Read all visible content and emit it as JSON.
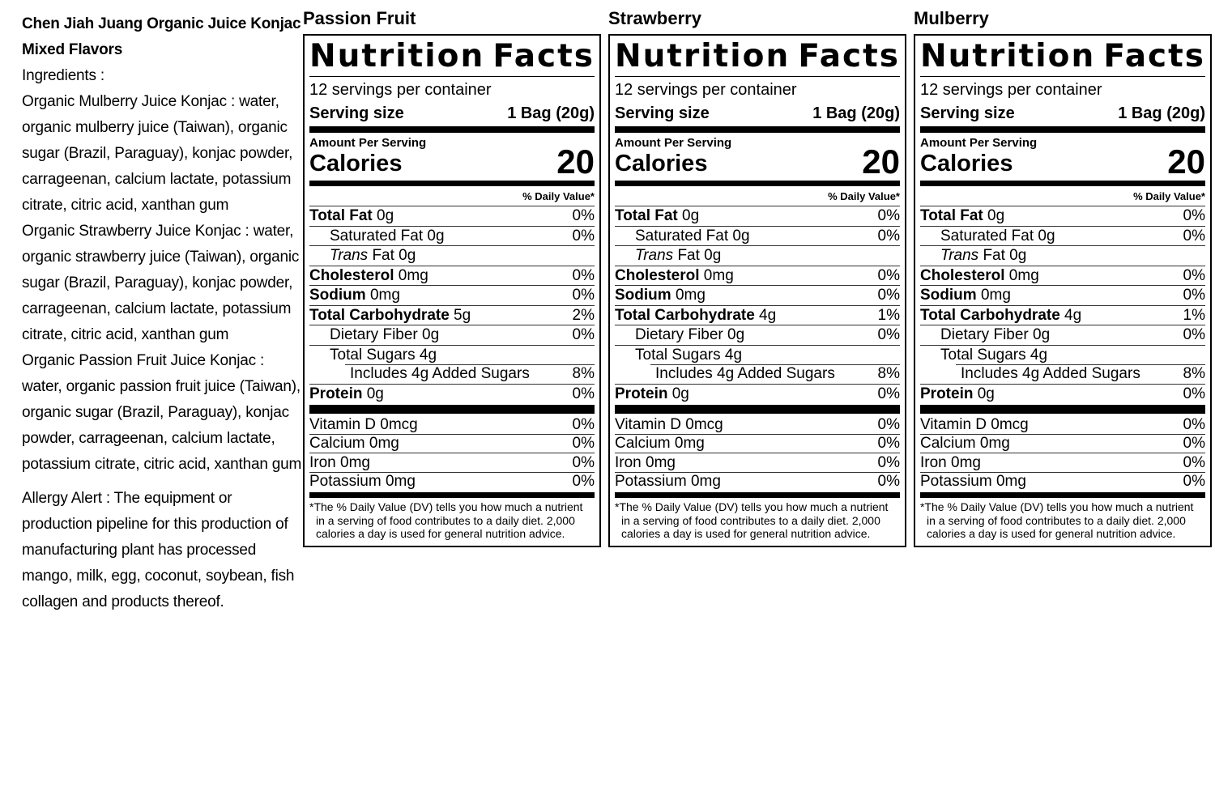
{
  "left_panel": {
    "title": "Chen Jiah Juang Organic Juice Konjac Mixed Flavors",
    "ingredients_heading": "Ingredients :",
    "paragraphs": [
      "Organic Mulberry Juice Konjac : water, organic mulberry juice (Taiwan), organic sugar (Brazil, Paraguay), konjac powder, carrageenan, calcium lactate, potassium citrate, citric acid, xanthan gum",
      "Organic Strawberry Juice Konjac : water, organic strawberry juice (Taiwan), organic sugar (Brazil, Paraguay), konjac powder, carrageenan, calcium lactate, potassium citrate, citric acid, xanthan gum",
      "Organic Passion Fruit Juice Konjac : water, organic passion fruit juice (Taiwan), organic sugar (Brazil, Paraguay), konjac powder, carrageenan, calcium lactate, potassium citrate, citric acid, xanthan gum"
    ],
    "allergy": "Allergy Alert : The equipment or production pipeline for this production of manufacturing plant has processed mango, milk, egg, coconut, soybean, fish collagen and products thereof."
  },
  "colors": {
    "text": "#000000",
    "background": "#ffffff",
    "rule": "#333333"
  },
  "labels": [
    {
      "flavor": "Passion Fruit",
      "title": "Nutrition Facts",
      "servings": "12 servings per container",
      "serving_size_label": "Serving size",
      "serving_size_value": "1 Bag (20g)",
      "amount_per_serving": "Amount Per Serving",
      "calories_label": "Calories",
      "calories_value": "20",
      "daily_value_header": "% Daily Value*",
      "rows": [
        {
          "segments": [
            {
              "text": "Total Fat",
              "bold": true
            },
            {
              "text": " 0g"
            }
          ],
          "pct": "0%",
          "pct_bold": true,
          "indent": 0,
          "sep": "line"
        },
        {
          "segments": [
            {
              "text": "Saturated Fat 0g"
            }
          ],
          "pct": "0%",
          "pct_bold": true,
          "indent": 1,
          "sep": "line"
        },
        {
          "segments": [
            {
              "text": "Trans",
              "italic": true
            },
            {
              "text": " Fat 0g"
            }
          ],
          "pct": "",
          "pct_bold": false,
          "indent": 1,
          "sep": "line"
        },
        {
          "segments": [
            {
              "text": "Cholesterol",
              "bold": true
            },
            {
              "text": " 0mg"
            }
          ],
          "pct": "0%",
          "pct_bold": true,
          "indent": 0,
          "sep": "line"
        },
        {
          "segments": [
            {
              "text": "Sodium",
              "bold": true
            },
            {
              "text": " 0mg"
            }
          ],
          "pct": "0%",
          "pct_bold": true,
          "indent": 0,
          "sep": "line"
        },
        {
          "segments": [
            {
              "text": "Total Carbohydrate",
              "bold": true
            },
            {
              "text": " 5g"
            }
          ],
          "pct": "2%",
          "pct_bold": true,
          "indent": 0,
          "sep": "line"
        },
        {
          "segments": [
            {
              "text": "Dietary Fiber 0g"
            }
          ],
          "pct": "0%",
          "pct_bold": true,
          "indent": 1,
          "sep": "line"
        },
        {
          "segments": [
            {
              "text": "Total Sugars 4g"
            }
          ],
          "pct": "",
          "pct_bold": false,
          "indent": 1,
          "sep": "line"
        },
        {
          "segments": [
            {
              "text": "Includes 4g Added Sugars"
            }
          ],
          "pct": "8%",
          "pct_bold": true,
          "indent": 2,
          "sep": "indent"
        },
        {
          "segments": [
            {
              "text": "Protein",
              "bold": true
            },
            {
              "text": " 0g"
            }
          ],
          "pct": "0%",
          "pct_bold": true,
          "indent": 0,
          "sep": "line"
        }
      ],
      "vitamin_rows": [
        {
          "segments": [
            {
              "text": "Vitamin D 0mcg"
            }
          ],
          "pct": "0%",
          "pct_bold": false,
          "indent": 0,
          "sep": "none"
        },
        {
          "segments": [
            {
              "text": "Calcium 0mg"
            }
          ],
          "pct": "0%",
          "pct_bold": false,
          "indent": 0,
          "sep": "line"
        },
        {
          "segments": [
            {
              "text": "Iron 0mg"
            }
          ],
          "pct": "0%",
          "pct_bold": false,
          "indent": 0,
          "sep": "line"
        },
        {
          "segments": [
            {
              "text": "Potassium 0mg"
            }
          ],
          "pct": "0%",
          "pct_bold": false,
          "indent": 0,
          "sep": "line"
        }
      ],
      "footnote": "*The % Daily Value (DV) tells you how much a nutrient in a serving of food contributes to a daily diet. 2,000 calories a day is used for general nutrition advice."
    },
    {
      "flavor": "Strawberry",
      "title": "Nutrition Facts",
      "servings": "12 servings per container",
      "serving_size_label": "Serving size",
      "serving_size_value": "1 Bag (20g)",
      "amount_per_serving": "Amount Per Serving",
      "calories_label": "Calories",
      "calories_value": "20",
      "daily_value_header": "% Daily Value*",
      "rows": [
        {
          "segments": [
            {
              "text": "Total Fat",
              "bold": true
            },
            {
              "text": " 0g"
            }
          ],
          "pct": "0%",
          "pct_bold": true,
          "indent": 0,
          "sep": "line"
        },
        {
          "segments": [
            {
              "text": "Saturated Fat 0g"
            }
          ],
          "pct": "0%",
          "pct_bold": true,
          "indent": 1,
          "sep": "line"
        },
        {
          "segments": [
            {
              "text": "Trans",
              "italic": true
            },
            {
              "text": " Fat 0g"
            }
          ],
          "pct": "",
          "pct_bold": false,
          "indent": 1,
          "sep": "line"
        },
        {
          "segments": [
            {
              "text": "Cholesterol",
              "bold": true
            },
            {
              "text": " 0mg"
            }
          ],
          "pct": "0%",
          "pct_bold": true,
          "indent": 0,
          "sep": "line"
        },
        {
          "segments": [
            {
              "text": "Sodium",
              "bold": true
            },
            {
              "text": " 0mg"
            }
          ],
          "pct": "0%",
          "pct_bold": true,
          "indent": 0,
          "sep": "line"
        },
        {
          "segments": [
            {
              "text": "Total Carbohydrate",
              "bold": true
            },
            {
              "text": " 4g"
            }
          ],
          "pct": "1%",
          "pct_bold": true,
          "indent": 0,
          "sep": "line"
        },
        {
          "segments": [
            {
              "text": "Dietary Fiber 0g"
            }
          ],
          "pct": "0%",
          "pct_bold": true,
          "indent": 1,
          "sep": "line"
        },
        {
          "segments": [
            {
              "text": "Total Sugars 4g"
            }
          ],
          "pct": "",
          "pct_bold": false,
          "indent": 1,
          "sep": "line"
        },
        {
          "segments": [
            {
              "text": "Includes 4g Added Sugars"
            }
          ],
          "pct": "8%",
          "pct_bold": true,
          "indent": 2,
          "sep": "indent"
        },
        {
          "segments": [
            {
              "text": "Protein",
              "bold": true
            },
            {
              "text": " 0g"
            }
          ],
          "pct": "0%",
          "pct_bold": true,
          "indent": 0,
          "sep": "line"
        }
      ],
      "vitamin_rows": [
        {
          "segments": [
            {
              "text": "Vitamin D 0mcg"
            }
          ],
          "pct": "0%",
          "pct_bold": false,
          "indent": 0,
          "sep": "none"
        },
        {
          "segments": [
            {
              "text": "Calcium 0mg"
            }
          ],
          "pct": "0%",
          "pct_bold": false,
          "indent": 0,
          "sep": "line"
        },
        {
          "segments": [
            {
              "text": "Iron 0mg"
            }
          ],
          "pct": "0%",
          "pct_bold": false,
          "indent": 0,
          "sep": "line"
        },
        {
          "segments": [
            {
              "text": "Potassium 0mg"
            }
          ],
          "pct": "0%",
          "pct_bold": false,
          "indent": 0,
          "sep": "line"
        }
      ],
      "footnote": "*The % Daily Value (DV) tells you how much a nutrient in a serving of food contributes to a daily diet. 2,000 calories a day is used for general nutrition advice."
    },
    {
      "flavor": "Mulberry",
      "title": "Nutrition Facts",
      "servings": "12 servings per container",
      "serving_size_label": "Serving size",
      "serving_size_value": "1 Bag (20g)",
      "amount_per_serving": "Amount Per Serving",
      "calories_label": "Calories",
      "calories_value": "20",
      "daily_value_header": "% Daily Value*",
      "rows": [
        {
          "segments": [
            {
              "text": "Total Fat",
              "bold": true
            },
            {
              "text": " 0g"
            }
          ],
          "pct": "0%",
          "pct_bold": true,
          "indent": 0,
          "sep": "line"
        },
        {
          "segments": [
            {
              "text": "Saturated Fat 0g"
            }
          ],
          "pct": "0%",
          "pct_bold": true,
          "indent": 1,
          "sep": "line"
        },
        {
          "segments": [
            {
              "text": "Trans",
              "italic": true
            },
            {
              "text": " Fat 0g"
            }
          ],
          "pct": "",
          "pct_bold": false,
          "indent": 1,
          "sep": "line"
        },
        {
          "segments": [
            {
              "text": "Cholesterol",
              "bold": true
            },
            {
              "text": " 0mg"
            }
          ],
          "pct": "0%",
          "pct_bold": true,
          "indent": 0,
          "sep": "line"
        },
        {
          "segments": [
            {
              "text": "Sodium",
              "bold": true
            },
            {
              "text": " 0mg"
            }
          ],
          "pct": "0%",
          "pct_bold": true,
          "indent": 0,
          "sep": "line"
        },
        {
          "segments": [
            {
              "text": "Total Carbohydrate",
              "bold": true
            },
            {
              "text": " 4g"
            }
          ],
          "pct": "1%",
          "pct_bold": true,
          "indent": 0,
          "sep": "line"
        },
        {
          "segments": [
            {
              "text": "Dietary Fiber 0g"
            }
          ],
          "pct": "0%",
          "pct_bold": true,
          "indent": 1,
          "sep": "line"
        },
        {
          "segments": [
            {
              "text": "Total Sugars 4g"
            }
          ],
          "pct": "",
          "pct_bold": false,
          "indent": 1,
          "sep": "line"
        },
        {
          "segments": [
            {
              "text": "Includes 4g Added Sugars"
            }
          ],
          "pct": "8%",
          "pct_bold": true,
          "indent": 2,
          "sep": "indent"
        },
        {
          "segments": [
            {
              "text": "Protein",
              "bold": true
            },
            {
              "text": " 0g"
            }
          ],
          "pct": "0%",
          "pct_bold": true,
          "indent": 0,
          "sep": "line"
        }
      ],
      "vitamin_rows": [
        {
          "segments": [
            {
              "text": "Vitamin D 0mcg"
            }
          ],
          "pct": "0%",
          "pct_bold": false,
          "indent": 0,
          "sep": "none"
        },
        {
          "segments": [
            {
              "text": "Calcium 0mg"
            }
          ],
          "pct": "0%",
          "pct_bold": false,
          "indent": 0,
          "sep": "line"
        },
        {
          "segments": [
            {
              "text": "Iron 0mg"
            }
          ],
          "pct": "0%",
          "pct_bold": false,
          "indent": 0,
          "sep": "line"
        },
        {
          "segments": [
            {
              "text": "Potassium 0mg"
            }
          ],
          "pct": "0%",
          "pct_bold": false,
          "indent": 0,
          "sep": "line"
        }
      ],
      "footnote": "*The % Daily Value (DV) tells you how much a nutrient in a serving of food contributes to a daily diet. 2,000 calories a day is used for general nutrition advice."
    }
  ]
}
